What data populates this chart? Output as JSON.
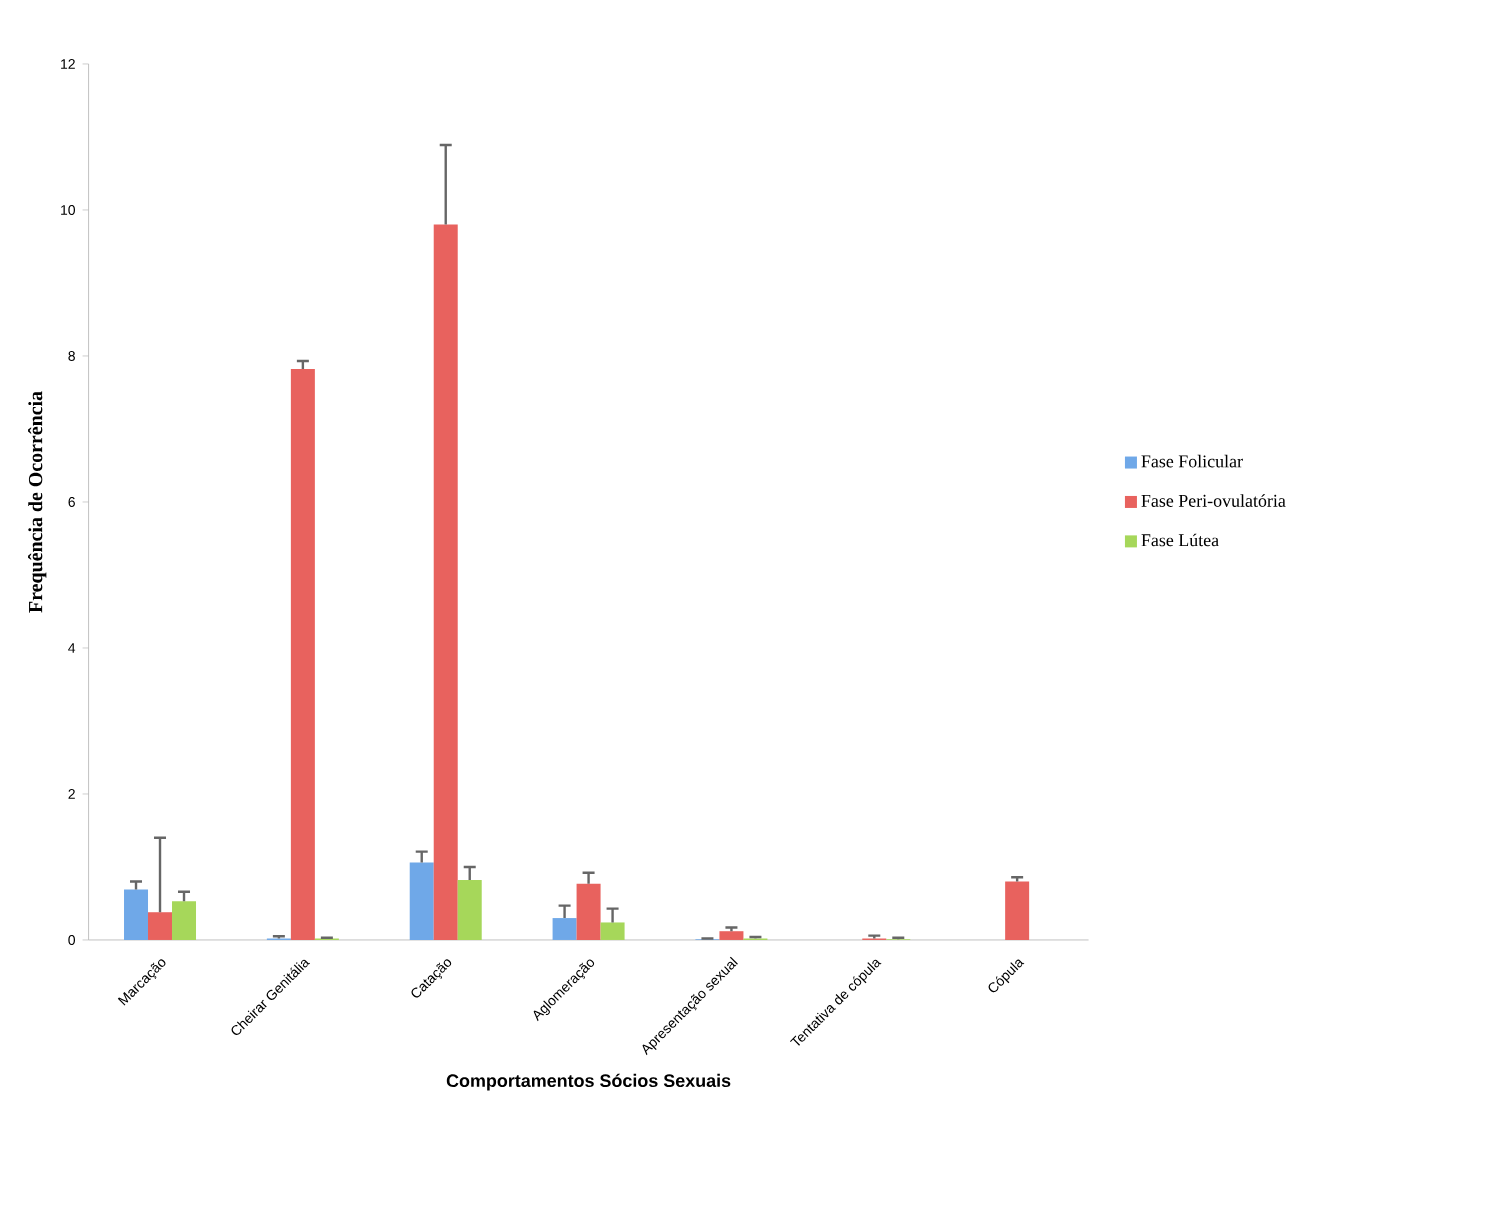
{
  "chart_data": {
    "type": "bar",
    "xlabel": "Comportamentos Sócios Sexuais",
    "ylabel": "Frequência de Ocorrência",
    "categories": [
      "Marcação",
      "Cheirar Genitália",
      "Catação",
      "Aglomeração",
      "Apresentação sexual",
      "Tentativa de cópula",
      "Cópula"
    ],
    "ylim": [
      0,
      12
    ],
    "yticks": [
      0,
      2,
      4,
      6,
      8,
      10,
      12
    ],
    "grid": false,
    "legend": "right",
    "series": [
      {
        "name": "Fase Folicular",
        "color": "#6fa8e8",
        "values": [
          0.69,
          0.02,
          1.06,
          0.3,
          0.01,
          0,
          0
        ],
        "errors": [
          [
            0.69,
            0.8
          ],
          [
            0.02,
            0.05
          ],
          [
            1.06,
            1.21
          ],
          [
            0.3,
            0.47
          ],
          [
            0.01,
            0.02
          ],
          null,
          null
        ]
      },
      {
        "name": "Fase Peri-ovulatória",
        "color": "#e8625e",
        "values": [
          0.38,
          7.82,
          9.8,
          0.77,
          0.12,
          0.02,
          0.8
        ],
        "errors": [
          [
            0.38,
            1.4
          ],
          [
            7.82,
            7.93
          ],
          [
            9.8,
            10.89
          ],
          [
            0.77,
            0.92
          ],
          [
            0.12,
            0.17
          ],
          [
            0.02,
            0.06
          ],
          [
            0.8,
            0.86
          ]
        ]
      },
      {
        "name": "Fase Lútea",
        "color": "#a6d75a",
        "values": [
          0.53,
          0.02,
          0.82,
          0.24,
          0.02,
          0.01,
          0
        ],
        "errors": [
          [
            0.53,
            0.66
          ],
          [
            0.02,
            0.03
          ],
          [
            0.82,
            1.0
          ],
          [
            0.24,
            0.43
          ],
          [
            0.02,
            0.04
          ],
          [
            0.01,
            0.03
          ],
          null
        ]
      }
    ]
  }
}
